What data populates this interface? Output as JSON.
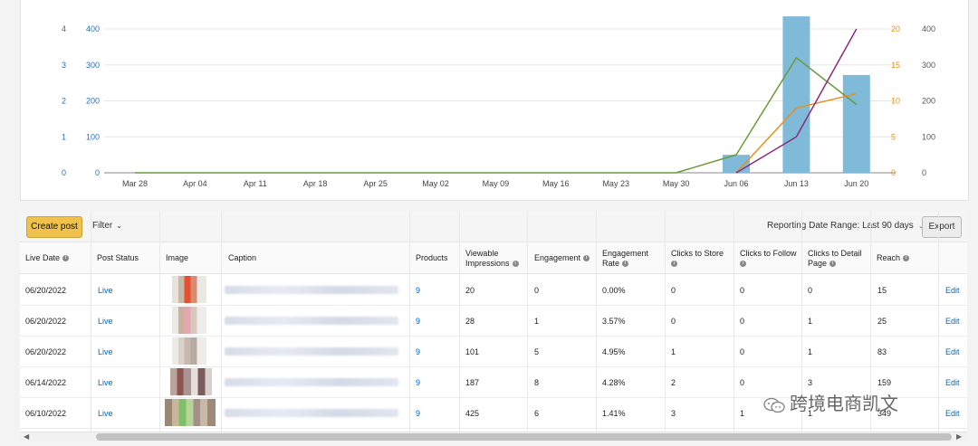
{
  "chart_data": {
    "type": "bar+line",
    "categories": [
      "Mar 28",
      "Apr 04",
      "Apr 11",
      "Apr 18",
      "Apr 25",
      "May 02",
      "May 09",
      "May 16",
      "May 23",
      "May 30",
      "Jun 06",
      "Jun 13",
      "Jun 20"
    ],
    "bar_series": {
      "axis": "right-outer",
      "values": [
        0,
        0,
        0,
        0,
        0,
        0,
        0,
        0,
        0,
        0,
        50,
        435,
        272
      ]
    },
    "line_series": [
      {
        "color": "#6a9a3a",
        "axis": "right-outer",
        "values": [
          0,
          0,
          0,
          0,
          0,
          0,
          0,
          0,
          0,
          0,
          50,
          320,
          190
        ]
      },
      {
        "color": "#e8901c",
        "axis": "right-inner",
        "values": [
          null,
          null,
          null,
          null,
          null,
          null,
          null,
          null,
          null,
          null,
          0,
          9,
          11
        ]
      },
      {
        "color": "#8b2a7a",
        "axis": "left-outer",
        "values": [
          null,
          null,
          null,
          null,
          null,
          null,
          null,
          null,
          null,
          null,
          0,
          1,
          4
        ]
      }
    ],
    "left_outer_ticks": [
      "0",
      "1",
      "2",
      "3",
      "4"
    ],
    "left_inner_ticks": [
      "0",
      "100",
      "200",
      "300",
      "400"
    ],
    "right_inner_ticks": [
      "0",
      "5",
      "10",
      "15",
      "20"
    ],
    "right_outer_ticks": [
      "0",
      "100",
      "200",
      "300",
      "400"
    ],
    "colors": {
      "bar": "#7fbad8",
      "left_outer": "#2a6ebb",
      "left_inner": "#2a6ebb",
      "right_inner": "#e8901c",
      "right_outer": "#555555"
    }
  },
  "toolbar": {
    "create_label": "Create post",
    "filter_label": "Filter",
    "range_label": "Reporting Date Range: Last 90 days",
    "export_label": "Export"
  },
  "columns": {
    "live_date": "Live Date",
    "post_status": "Post Status",
    "image": "Image",
    "caption": "Caption",
    "products": "Products",
    "viewable_1": "Viewable",
    "viewable_2": "Impressions",
    "engagement": "Engagement",
    "eng_rate_1": "Engagement",
    "eng_rate_2": "Rate",
    "clicks_store": "Clicks to Store",
    "clicks_follow": "Clicks to Follow",
    "clicks_detail_1": "Clicks to Detail",
    "clicks_detail_2": "Page",
    "reach": "Reach"
  },
  "rows": [
    {
      "date": "06/20/2022",
      "status": "Live",
      "products": "9",
      "impressions": "20",
      "engagement": "0",
      "rate": "0.00%",
      "store": "0",
      "follow": "0",
      "detail": "0",
      "reach": "15",
      "edit": "Edit"
    },
    {
      "date": "06/20/2022",
      "status": "Live",
      "products": "9",
      "impressions": "28",
      "engagement": "1",
      "rate": "3.57%",
      "store": "0",
      "follow": "0",
      "detail": "1",
      "reach": "25",
      "edit": "Edit"
    },
    {
      "date": "06/20/2022",
      "status": "Live",
      "products": "9",
      "impressions": "101",
      "engagement": "5",
      "rate": "4.95%",
      "store": "1",
      "follow": "0",
      "detail": "1",
      "reach": "83",
      "edit": "Edit"
    },
    {
      "date": "06/14/2022",
      "status": "Live",
      "products": "9",
      "impressions": "187",
      "engagement": "8",
      "rate": "4.28%",
      "store": "2",
      "follow": "0",
      "detail": "3",
      "reach": "159",
      "edit": "Edit"
    },
    {
      "date": "06/10/2022",
      "status": "Live",
      "products": "9",
      "impressions": "425",
      "engagement": "6",
      "rate": "1.41%",
      "store": "3",
      "follow": "1",
      "detail": "1",
      "reach": "349",
      "edit": "Edit"
    }
  ],
  "watermark": "跨境电商凯文"
}
